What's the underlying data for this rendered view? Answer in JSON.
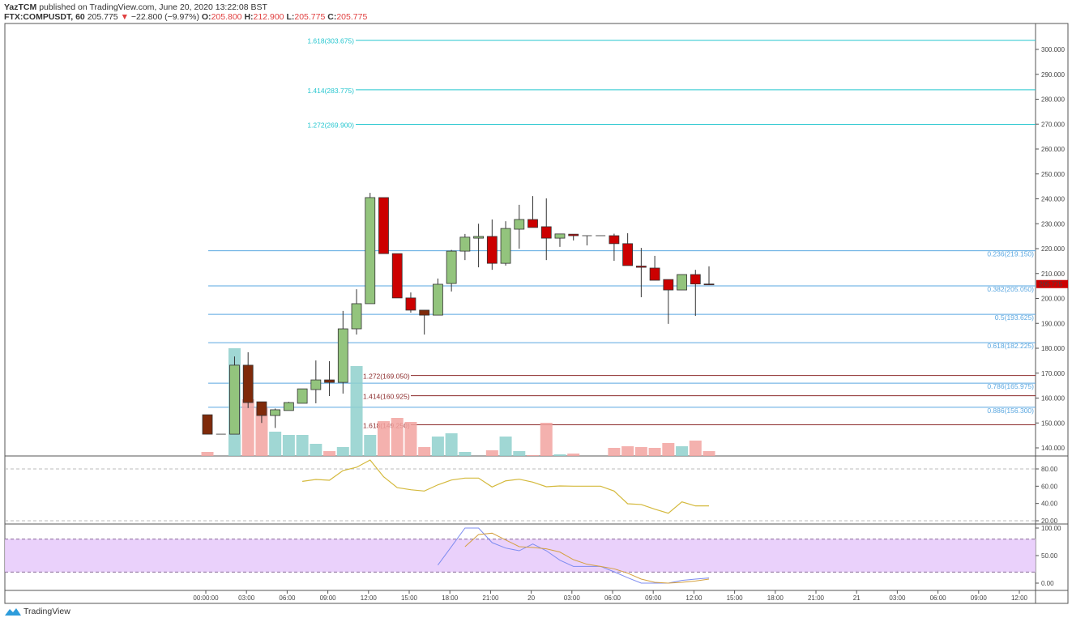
{
  "header": {
    "author": "YazTCM",
    "published": "published on TradingView.com, June 20, 2020 13:22:08 BST",
    "symbol": "FTX:COMPUSDT, 60",
    "last": "205.775",
    "change_arrow": "▼",
    "change": "−22.800 (−9.97%)",
    "o_label": "O:",
    "o": "205.800",
    "h_label": "H:",
    "h": "212.900",
    "l_label": "L:",
    "l": "205.775",
    "c_label": "C:",
    "c": "205.775"
  },
  "footer": {
    "brand": "TradingView",
    "icon": "tradingview-logo-icon"
  },
  "colors": {
    "up": "#93c47d",
    "down": "#cc0000",
    "down_alt": "#7f2a0a",
    "vol_up": "#8fd0cc",
    "vol_down": "#f2a3a0",
    "fib_blue": "#5aa7e0",
    "fib_teal": "#25c6cf",
    "fib_red": "#8b2a2a",
    "rsi": "#d4b93c",
    "stoch_k": "#7e8cf0",
    "stoch_d": "#d4a040",
    "stoch_band": "#e8ccfb",
    "price_badge": "#cc0000"
  },
  "chart_data": [
    {
      "type": "candlestick",
      "price_axis": {
        "ticks": [
          "140.000",
          "150.000",
          "160.000",
          "170.000",
          "180.000",
          "190.000",
          "200.000",
          "210.000",
          "220.000",
          "230.000",
          "240.000",
          "250.000",
          "260.000",
          "270.000",
          "280.000",
          "290.000",
          "300.000"
        ],
        "range": [
          136,
          305
        ]
      },
      "last_price_label": "205.775",
      "time_axis": [
        "00:00:00",
        "03:00",
        "06:00",
        "09:00",
        "12:00",
        "15:00",
        "18:00",
        "21:00",
        "20",
        "03:00",
        "06:00",
        "09:00",
        "12:00",
        "15:00",
        "18:00",
        "21:00",
        "21",
        "03:00",
        "06:00",
        "09:00",
        "12:00"
      ],
      "columns": [
        "time",
        "open",
        "high",
        "low",
        "close",
        "volume",
        "style"
      ],
      "candles": [
        [
          "19 00:00",
          153.3,
          153.3,
          145.5,
          145.5,
          5,
          "b"
        ],
        [
          "19 01:00",
          145.5,
          145.5,
          145.5,
          145.5,
          0,
          "u"
        ],
        [
          "19 02:00",
          145.5,
          176.7,
          145.5,
          173.2,
          133,
          "u"
        ],
        [
          "19 03:00",
          173.2,
          178.4,
          156.0,
          158.2,
          70,
          "b"
        ],
        [
          "19 04:00",
          158.5,
          158.5,
          150.0,
          153.0,
          60,
          "b"
        ],
        [
          "19 05:00",
          153.0,
          155.8,
          148.0,
          155.3,
          30,
          "u"
        ],
        [
          "19 06:00",
          155.0,
          158.5,
          155.0,
          158.2,
          26,
          "u"
        ],
        [
          "19 07:00",
          157.9,
          163.7,
          157.9,
          163.7,
          26,
          "u"
        ],
        [
          "19 08:00",
          163.4,
          175.1,
          157.9,
          167.3,
          15,
          "u"
        ],
        [
          "19 09:00",
          167.3,
          174.8,
          160.8,
          166.3,
          6,
          "b"
        ],
        [
          "19 10:00",
          166.3,
          195.0,
          161.8,
          187.8,
          11,
          "u"
        ],
        [
          "19 11:00",
          187.8,
          203.7,
          185.5,
          197.9,
          111,
          "u"
        ],
        [
          "19 12:00",
          197.9,
          242.4,
          197.9,
          240.5,
          26,
          "u"
        ],
        [
          "19 13:00",
          240.5,
          240.5,
          218.0,
          218.0,
          43,
          "d"
        ],
        [
          "19 14:00",
          218.0,
          218.0,
          200.2,
          200.2,
          47,
          "d"
        ],
        [
          "19 15:00",
          200.2,
          202.4,
          194.3,
          195.3,
          42,
          "d"
        ],
        [
          "19 16:00",
          195.3,
          195.3,
          185.5,
          193.3,
          11,
          "b"
        ],
        [
          "19 17:00",
          193.3,
          208.0,
          193.3,
          205.7,
          24,
          "u"
        ],
        [
          "19 18:00",
          206.0,
          219.5,
          202.8,
          219.0,
          28,
          "u"
        ],
        [
          "19 19:00",
          219.0,
          225.9,
          215.4,
          224.6,
          5,
          "u"
        ],
        [
          "19 20:00",
          224.2,
          230.0,
          212.5,
          224.9,
          0,
          "u"
        ],
        [
          "19 21:00",
          224.9,
          231.7,
          211.5,
          214.1,
          7,
          "d"
        ],
        [
          "19 22:00",
          214.1,
          231.0,
          213.2,
          228.1,
          24,
          "u"
        ],
        [
          "19 23:00",
          227.8,
          237.6,
          220.0,
          231.7,
          6,
          "u"
        ],
        [
          "20 00:00",
          231.7,
          241.1,
          228.5,
          228.5,
          1,
          "d"
        ],
        [
          "20 01:00",
          228.8,
          240.2,
          215.4,
          224.2,
          41,
          "d"
        ],
        [
          "20 02:00",
          224.2,
          225.9,
          220.7,
          225.9,
          2,
          "u"
        ],
        [
          "20 03:00",
          225.8,
          225.8,
          223.3,
          225.2,
          3,
          "d"
        ],
        [
          "20 04:00",
          225.2,
          225.2,
          221.3,
          225.2,
          0,
          "u"
        ],
        [
          "20 05:00",
          225.2,
          225.2,
          225.2,
          225.2,
          0,
          "u"
        ],
        [
          "20 06:00",
          225.2,
          226.0,
          215.1,
          222.0,
          10,
          "d"
        ],
        [
          "20 07:00",
          222.0,
          226.2,
          213.2,
          213.2,
          12,
          "d"
        ],
        [
          "20 08:00",
          213.0,
          220.3,
          200.5,
          212.5,
          11,
          "d"
        ],
        [
          "20 09:00",
          212.2,
          217.1,
          207.3,
          207.3,
          10,
          "d"
        ],
        [
          "20 10:00",
          207.6,
          207.6,
          189.8,
          203.4,
          16,
          "d"
        ],
        [
          "20 11:00",
          203.4,
          209.6,
          203.4,
          209.6,
          12,
          "u"
        ],
        [
          "20 12:00",
          209.6,
          211.5,
          193.0,
          205.8,
          19,
          "d"
        ],
        [
          "20 13:00",
          205.8,
          212.9,
          205.775,
          205.775,
          6,
          "d"
        ]
      ],
      "fib_retracement": [
        {
          "label": "0.236(219.150)",
          "level": 219.15
        },
        {
          "label": "0.382(205.050)",
          "level": 205.05
        },
        {
          "label": "0.5(193.625)",
          "level": 193.625
        },
        {
          "label": "0.618(182.225)",
          "level": 182.225
        },
        {
          "label": "0.786(165.975)",
          "level": 165.975
        },
        {
          "label": "0.886(156.300)",
          "level": 156.3
        }
      ],
      "fib_extension_down": [
        {
          "label": "1.272(169.050)",
          "level": 169.05
        },
        {
          "label": "1.414(160.925)",
          "level": 160.925
        },
        {
          "label": "1.618(149.250)",
          "level": 149.25
        }
      ],
      "fib_extension_up": [
        {
          "label": "1.618(303.675)",
          "level": 303.675
        },
        {
          "label": "1.414(283.775)",
          "level": 283.775
        },
        {
          "label": "1.272(269.900)",
          "level": 269.9
        }
      ]
    },
    {
      "type": "line",
      "name": "",
      "axis_ticks": [
        "80.00",
        "60.00",
        "40.00",
        "20.00"
      ],
      "range": [
        20,
        80
      ],
      "bands": [
        20,
        80
      ],
      "values": [
        null,
        null,
        null,
        null,
        null,
        null,
        null,
        65.6,
        67.8,
        66.9,
        78.1,
        81.9,
        90.3,
        70.9,
        58.4,
        55.9,
        54.4,
        61.6,
        67.2,
        69.4,
        69.4,
        59.1,
        66.2,
        68.1,
        64.7,
        59.4,
        60.3,
        60.0,
        60.0,
        60.0,
        54.4,
        39.7,
        38.8,
        33.4,
        28.7,
        41.9,
        37.2,
        37.2
      ]
    },
    {
      "type": "line",
      "axis_ticks": [
        "100.00",
        "50.00",
        "0.00"
      ],
      "range": [
        0,
        100
      ],
      "bands": [
        20,
        80
      ],
      "series": [
        {
          "values": [
            null,
            null,
            null,
            null,
            null,
            null,
            null,
            null,
            null,
            null,
            null,
            null,
            null,
            null,
            null,
            null,
            null,
            32.8,
            66.2,
            100,
            100,
            73.5,
            63.7,
            58.8,
            71.0,
            58.8,
            41.7,
            30.4,
            30.4,
            30.4,
            20.6,
            9.8,
            0,
            0,
            0,
            4.9,
            7.4,
            9.3
          ]
        },
        {
          "values": [
            null,
            null,
            null,
            null,
            null,
            null,
            null,
            null,
            null,
            null,
            null,
            null,
            null,
            null,
            null,
            null,
            null,
            null,
            null,
            66.2,
            88.2,
            90.7,
            78.4,
            66.2,
            64.7,
            62.3,
            56.4,
            42.6,
            34.3,
            30.4,
            26.0,
            18.1,
            7.4,
            1.5,
            0,
            1.5,
            3.9,
            7.4
          ]
        }
      ]
    }
  ]
}
